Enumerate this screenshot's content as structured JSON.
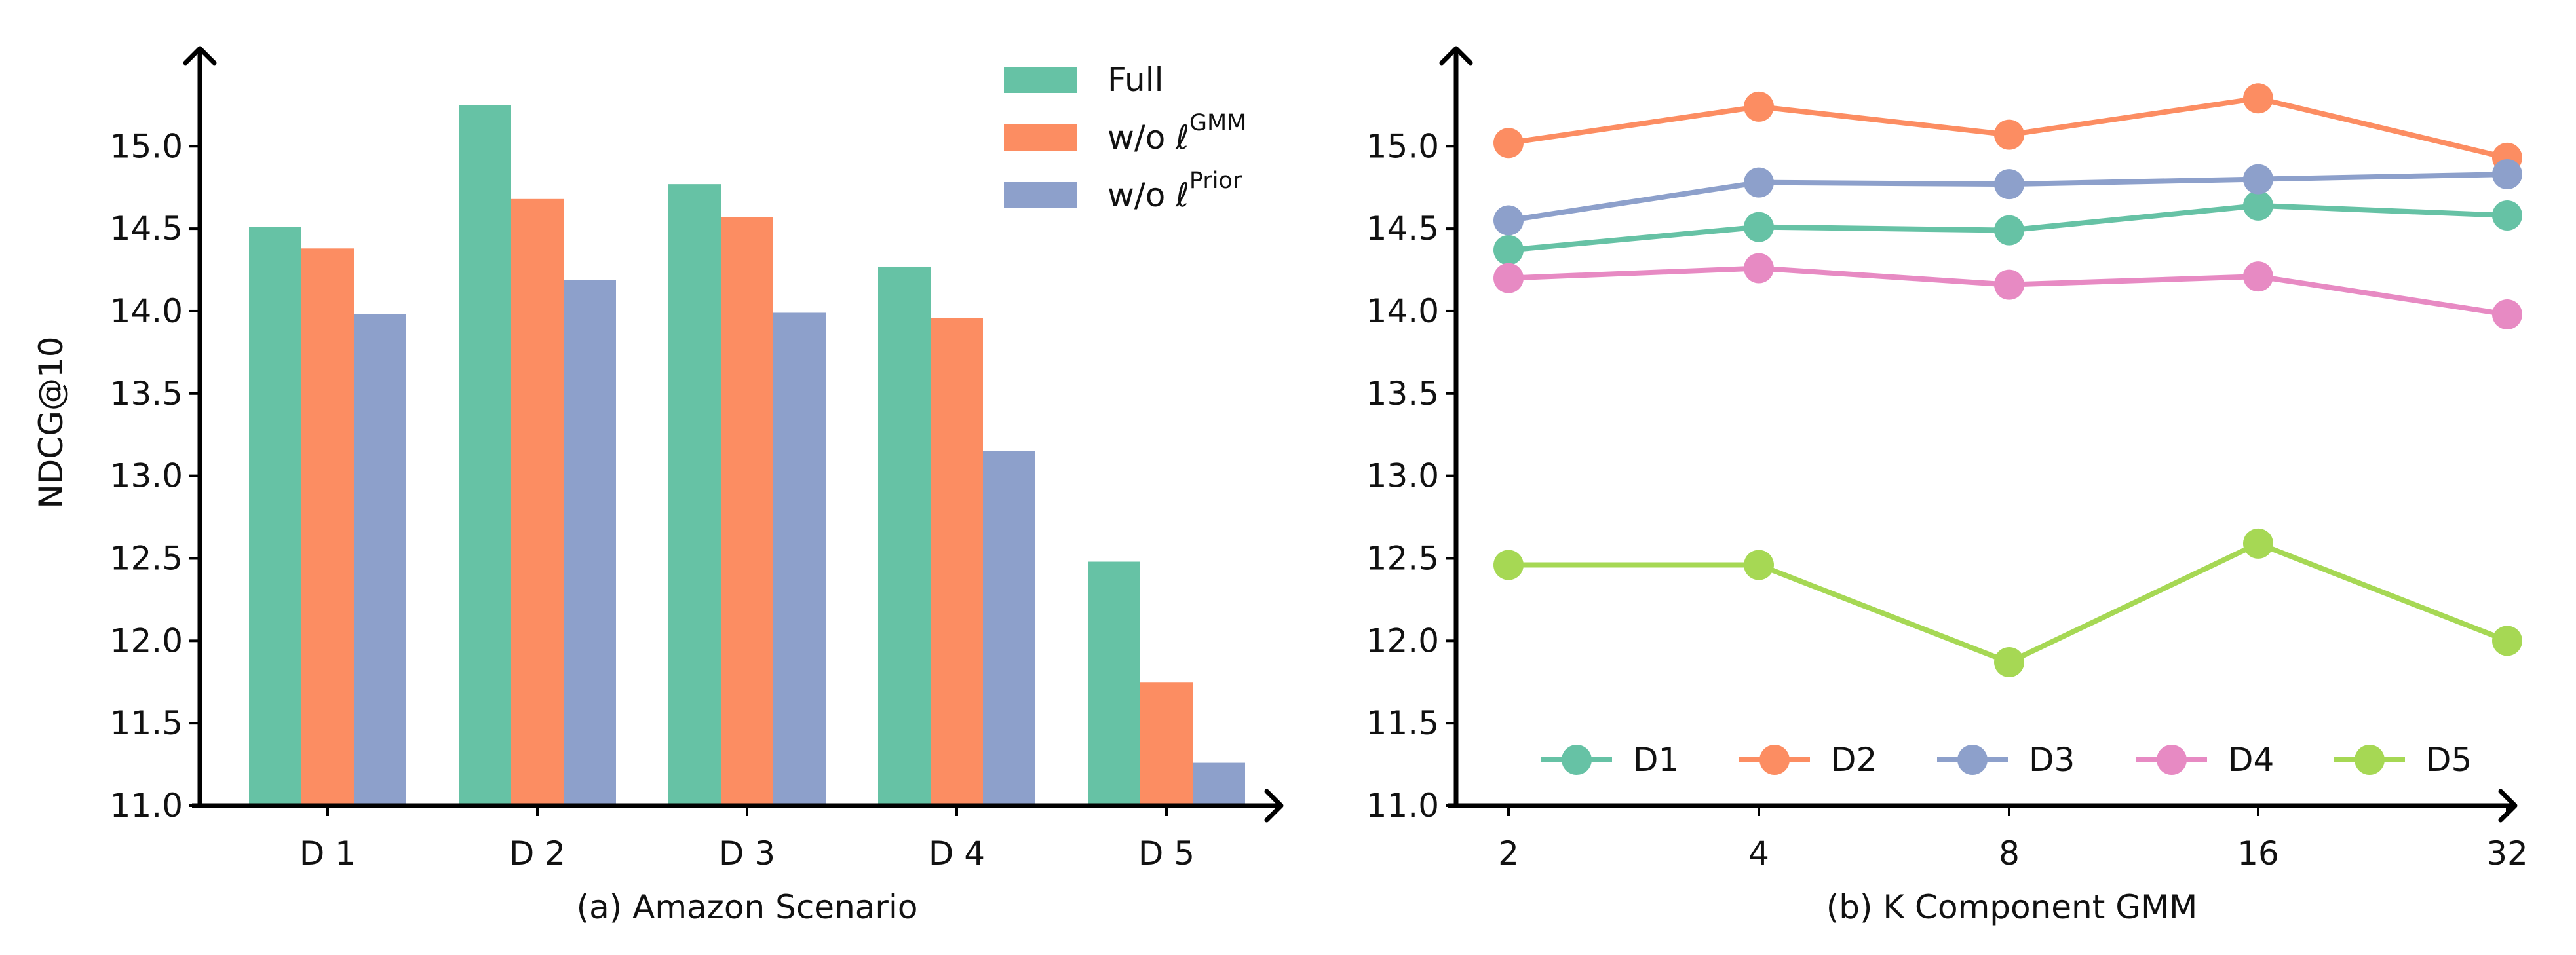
{
  "chart_data": [
    {
      "type": "bar",
      "title": "",
      "xlabel": "(a) Amazon Scenario",
      "ylabel": "NDCG@10",
      "categories": [
        "D 1",
        "D 2",
        "D 3",
        "D 4",
        "D 5"
      ],
      "series": [
        {
          "name": "Full",
          "values": [
            14.51,
            15.25,
            14.77,
            14.27,
            12.48
          ]
        },
        {
          "name": "w/o ℓ",
          "values": [
            14.38,
            14.68,
            14.57,
            13.96,
            11.75
          ]
        },
        {
          "name": "w/o ℓ",
          "values": [
            13.98,
            14.19,
            13.99,
            13.15,
            11.26
          ]
        }
      ],
      "legend_superscripts": [
        "",
        "GMM",
        "Prior"
      ],
      "ylim": [
        11.0,
        15.45
      ],
      "yticks": [
        "11.0",
        "11.5",
        "12.0",
        "12.5",
        "13.0",
        "13.5",
        "14.0",
        "14.5",
        "15.0"
      ],
      "legend_position": "top-right",
      "grid": false
    },
    {
      "type": "line",
      "title": "",
      "xlabel": "(b) K Component GMM",
      "ylabel": "",
      "x": [
        "2",
        "4",
        "8",
        "16",
        "32"
      ],
      "series": [
        {
          "name": "D1",
          "values": [
            14.37,
            14.51,
            14.49,
            14.64,
            14.58
          ]
        },
        {
          "name": "D2",
          "values": [
            15.02,
            15.24,
            15.07,
            15.29,
            14.93
          ]
        },
        {
          "name": "D3",
          "values": [
            14.55,
            14.78,
            14.77,
            14.8,
            14.83
          ]
        },
        {
          "name": "D4",
          "values": [
            14.2,
            14.26,
            14.16,
            14.21,
            13.98
          ]
        },
        {
          "name": "D5",
          "values": [
            12.46,
            12.46,
            11.87,
            12.59,
            12.0
          ]
        }
      ],
      "ylim": [
        11.0,
        15.45
      ],
      "yticks": [
        "11.0",
        "11.5",
        "12.0",
        "12.5",
        "13.0",
        "13.5",
        "14.0",
        "14.5",
        "15.0"
      ],
      "legend_position": "bottom",
      "grid": false
    }
  ],
  "colors": {
    "green": "#66c2a5",
    "orange": "#fc8d62",
    "blue": "#8da0cb",
    "pink": "#e78ac3",
    "lime": "#a6d854",
    "axis": "#000000"
  }
}
